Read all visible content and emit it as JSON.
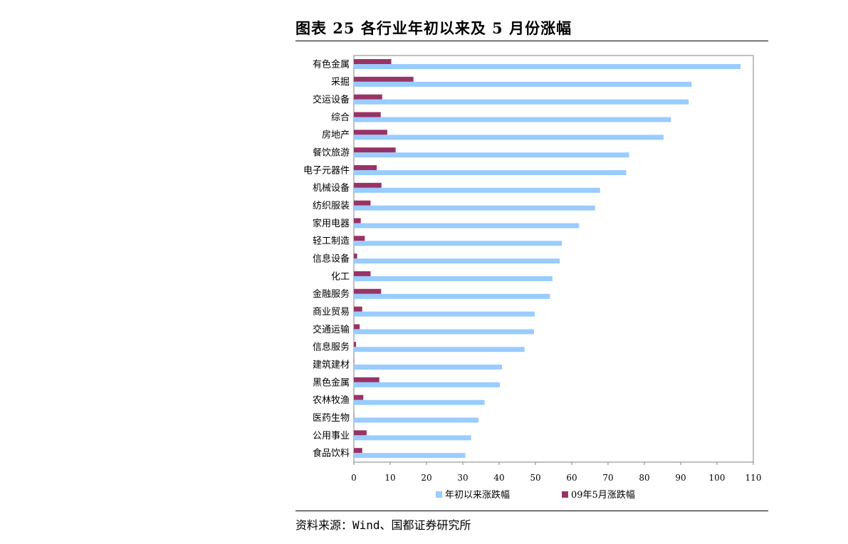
{
  "title": "图表 25   各行业年初以来及 5 月份涨幅",
  "source": "资料来源：Wind、国都证券研究所",
  "colors": {
    "ytd": "#99CCFF",
    "may": "#993366"
  },
  "chart_data": {
    "type": "bar",
    "orientation": "horizontal",
    "categories": [
      "有色金属",
      "采掘",
      "交运设备",
      "综合",
      "房地产",
      "餐饮旅游",
      "电子元器件",
      "机械设备",
      "纺织服装",
      "家用电器",
      "轻工制造",
      "信息设备",
      "化工",
      "金融服务",
      "商业贸易",
      "交通运输",
      "信息服务",
      "建筑建材",
      "黑色金属",
      "农林牧渔",
      "医药生物",
      "公用事业",
      "食品饮料"
    ],
    "series": [
      {
        "name": "年初以来涨跌幅",
        "values": [
          106.5,
          93.0,
          92.2,
          87.3,
          85.3,
          75.8,
          75.0,
          67.8,
          66.4,
          62.0,
          57.3,
          56.7,
          54.7,
          54.0,
          49.8,
          49.6,
          47.0,
          40.8,
          40.2,
          36.0,
          34.3,
          32.3,
          30.7
        ]
      },
      {
        "name": "09年5月涨跌幅",
        "values": [
          10.3,
          16.4,
          7.8,
          7.4,
          9.2,
          11.5,
          6.3,
          7.6,
          4.6,
          1.9,
          3.0,
          0.9,
          4.6,
          7.5,
          2.3,
          1.6,
          0.6,
          0.1,
          7.0,
          2.6,
          0.1,
          3.5,
          2.3
        ]
      }
    ],
    "xlim": [
      0,
      110
    ],
    "xticks": [
      0,
      10,
      20,
      30,
      40,
      50,
      60,
      70,
      80,
      90,
      100,
      110
    ],
    "grid": false,
    "legend_position": "bottom"
  }
}
